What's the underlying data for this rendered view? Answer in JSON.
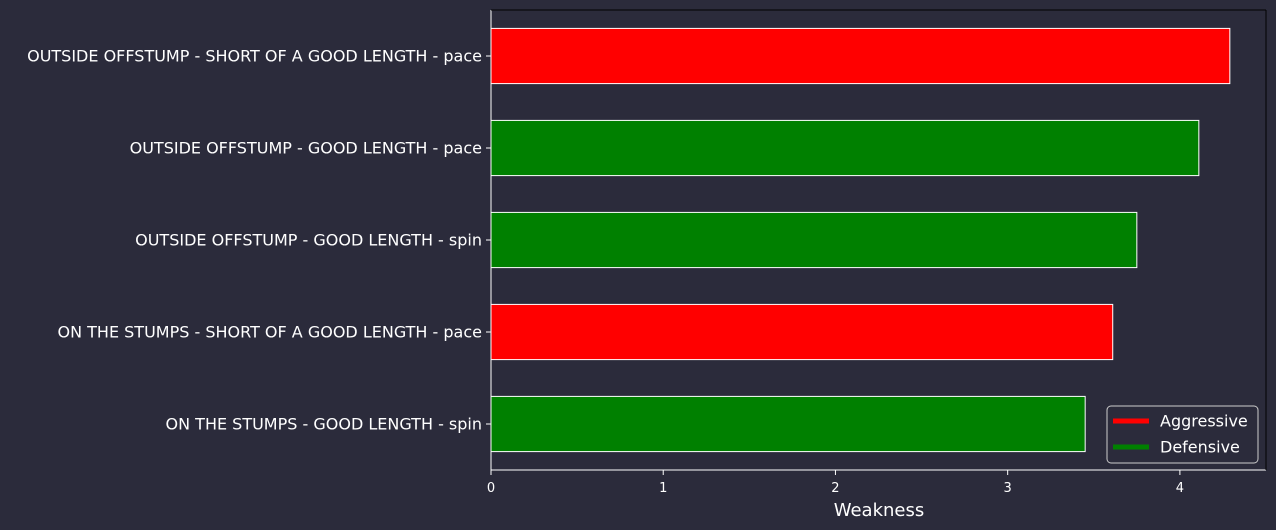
{
  "chart_data": {
    "type": "bar",
    "orientation": "horizontal",
    "title": "",
    "xlabel": "Weakness",
    "ylabel": "",
    "xlim": [
      0,
      4.5
    ],
    "xticks": [
      0,
      1,
      2,
      3,
      4
    ],
    "grid": false,
    "legend_position": "lower-right",
    "categories": [
      "OUTSIDE OFFSTUMP - SHORT OF A GOOD LENGTH - pace",
      "OUTSIDE OFFSTUMP - GOOD LENGTH - pace",
      "OUTSIDE OFFSTUMP - GOOD LENGTH - spin",
      "ON THE STUMPS - SHORT OF A GOOD LENGTH - pace",
      "ON THE STUMPS - GOOD LENGTH - spin"
    ],
    "values": [
      4.29,
      4.11,
      3.75,
      3.61,
      3.45
    ],
    "bar_styles": [
      "Aggressive",
      "Defensive",
      "Defensive",
      "Aggressive",
      "Defensive"
    ],
    "legend": [
      {
        "label": "Aggressive",
        "color": "#ff0000"
      },
      {
        "label": "Defensive",
        "color": "#008000"
      }
    ],
    "colors": {
      "background": "#2b2b3b",
      "aggressive": "#ff0000",
      "defensive": "#008000",
      "text": "#ffffff"
    }
  }
}
